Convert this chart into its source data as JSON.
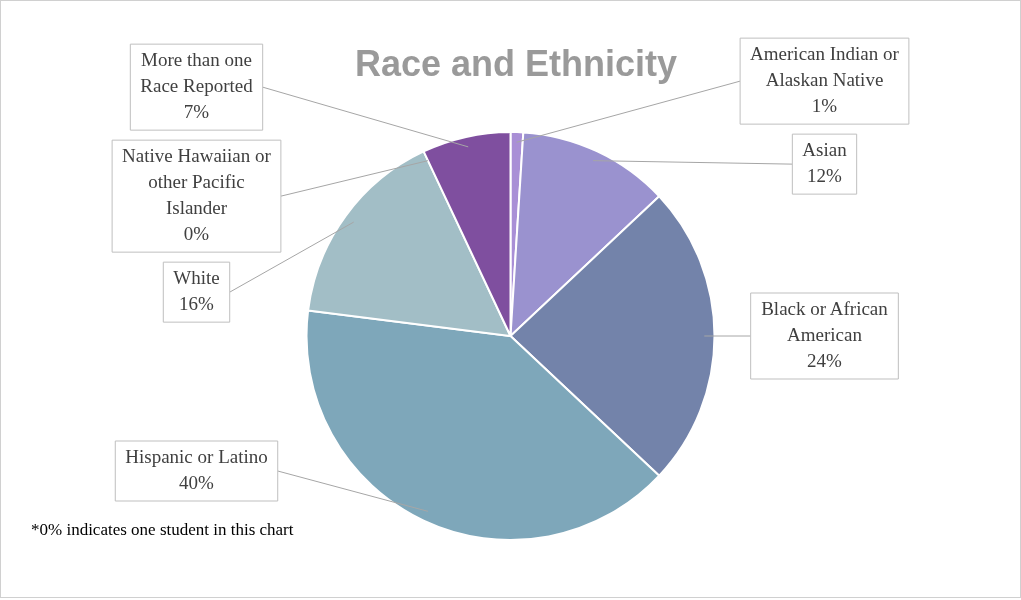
{
  "chart_data": {
    "type": "pie",
    "title": "Race and Ethnicity",
    "categories": [
      "American Indian or Alaskan Native",
      "Asian",
      "Black or African American",
      "Hispanic or Latino",
      "White",
      "Native Hawaiian or other Pacific Islander",
      "More than one Race Reported"
    ],
    "values": [
      1,
      12,
      24,
      40,
      16,
      0,
      7
    ],
    "value_labels": [
      "1%",
      "12%",
      "24%",
      "40%",
      "16%",
      "0%",
      "7%"
    ],
    "colors": [
      "#a98fd6",
      "#9a92cf",
      "#7383aa",
      "#7ea7ba",
      "#a2bec6",
      "#f0f0f0",
      "#7f4f9f"
    ],
    "annotations": [
      "*0% indicates one student in this chart"
    ],
    "legend": false
  }
}
